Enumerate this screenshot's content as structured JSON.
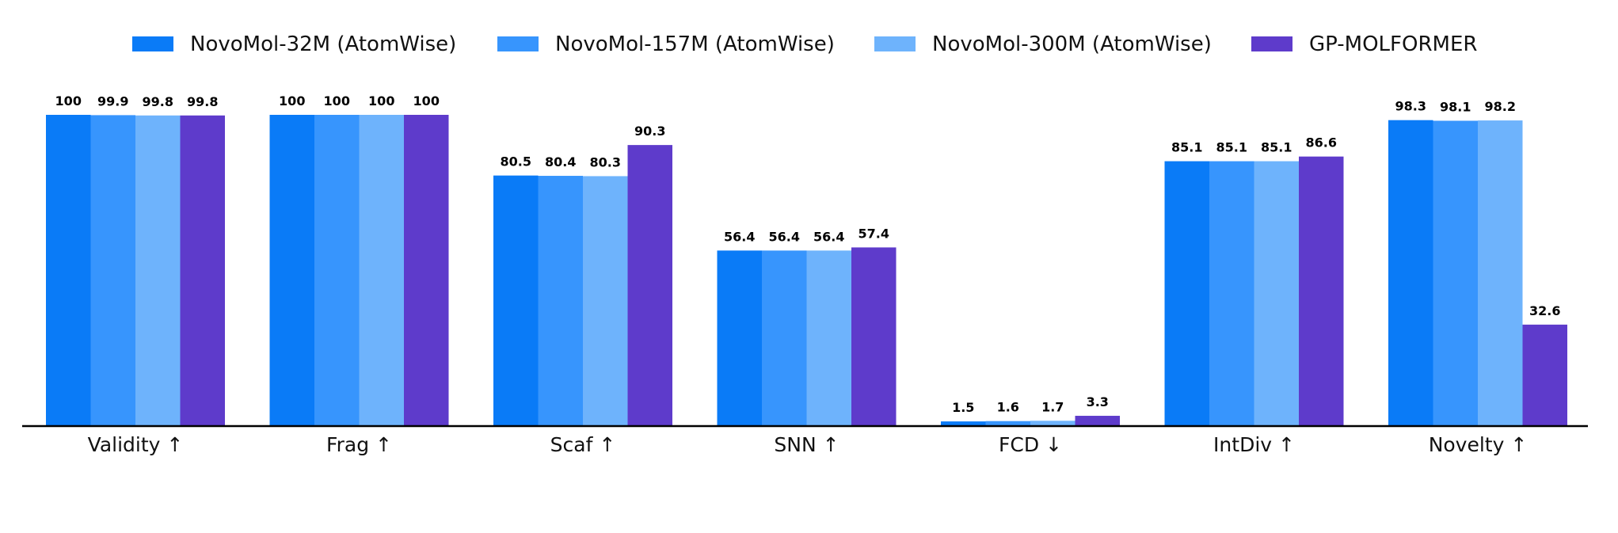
{
  "chart_data": {
    "type": "bar",
    "categories": [
      "Validity ↑",
      "Frag ↑",
      "Scaf ↑",
      "SNN ↑",
      "FCD ↓",
      "IntDiv ↑",
      "Novelty ↑"
    ],
    "series": [
      {
        "name": "NovoMol-32M (AtomWise)",
        "color": "#0A7BF7",
        "values": [
          100,
          100,
          80.5,
          56.4,
          1.5,
          85.1,
          98.3
        ],
        "labels": [
          "100",
          "100",
          "80.5",
          "56.4",
          "1.5",
          "85.1",
          "98.3"
        ]
      },
      {
        "name": "NovoMol-157M (AtomWise)",
        "color": "#3795FD",
        "values": [
          99.9,
          100,
          80.4,
          56.4,
          1.6,
          85.1,
          98.1
        ],
        "labels": [
          "99.9",
          "100",
          "80.4",
          "56.4",
          "1.6",
          "85.1",
          "98.1"
        ]
      },
      {
        "name": "NovoMol-300M (AtomWise)",
        "color": "#6EB3FC",
        "values": [
          99.8,
          100,
          80.3,
          56.4,
          1.7,
          85.1,
          98.2
        ],
        "labels": [
          "99.8",
          "100",
          "80.3",
          "56.4",
          "1.7",
          "85.1",
          "98.2"
        ]
      },
      {
        "name": "GP-MOLFORMER",
        "color": "#5E3BCB",
        "values": [
          99.8,
          100,
          90.3,
          57.4,
          3.3,
          86.6,
          32.6
        ],
        "labels": [
          "99.8",
          "100",
          "90.3",
          "57.4",
          "3.3",
          "86.6",
          "32.6"
        ]
      }
    ],
    "ylim": [
      0,
      100
    ],
    "legend_position": "top",
    "grid": false
  }
}
